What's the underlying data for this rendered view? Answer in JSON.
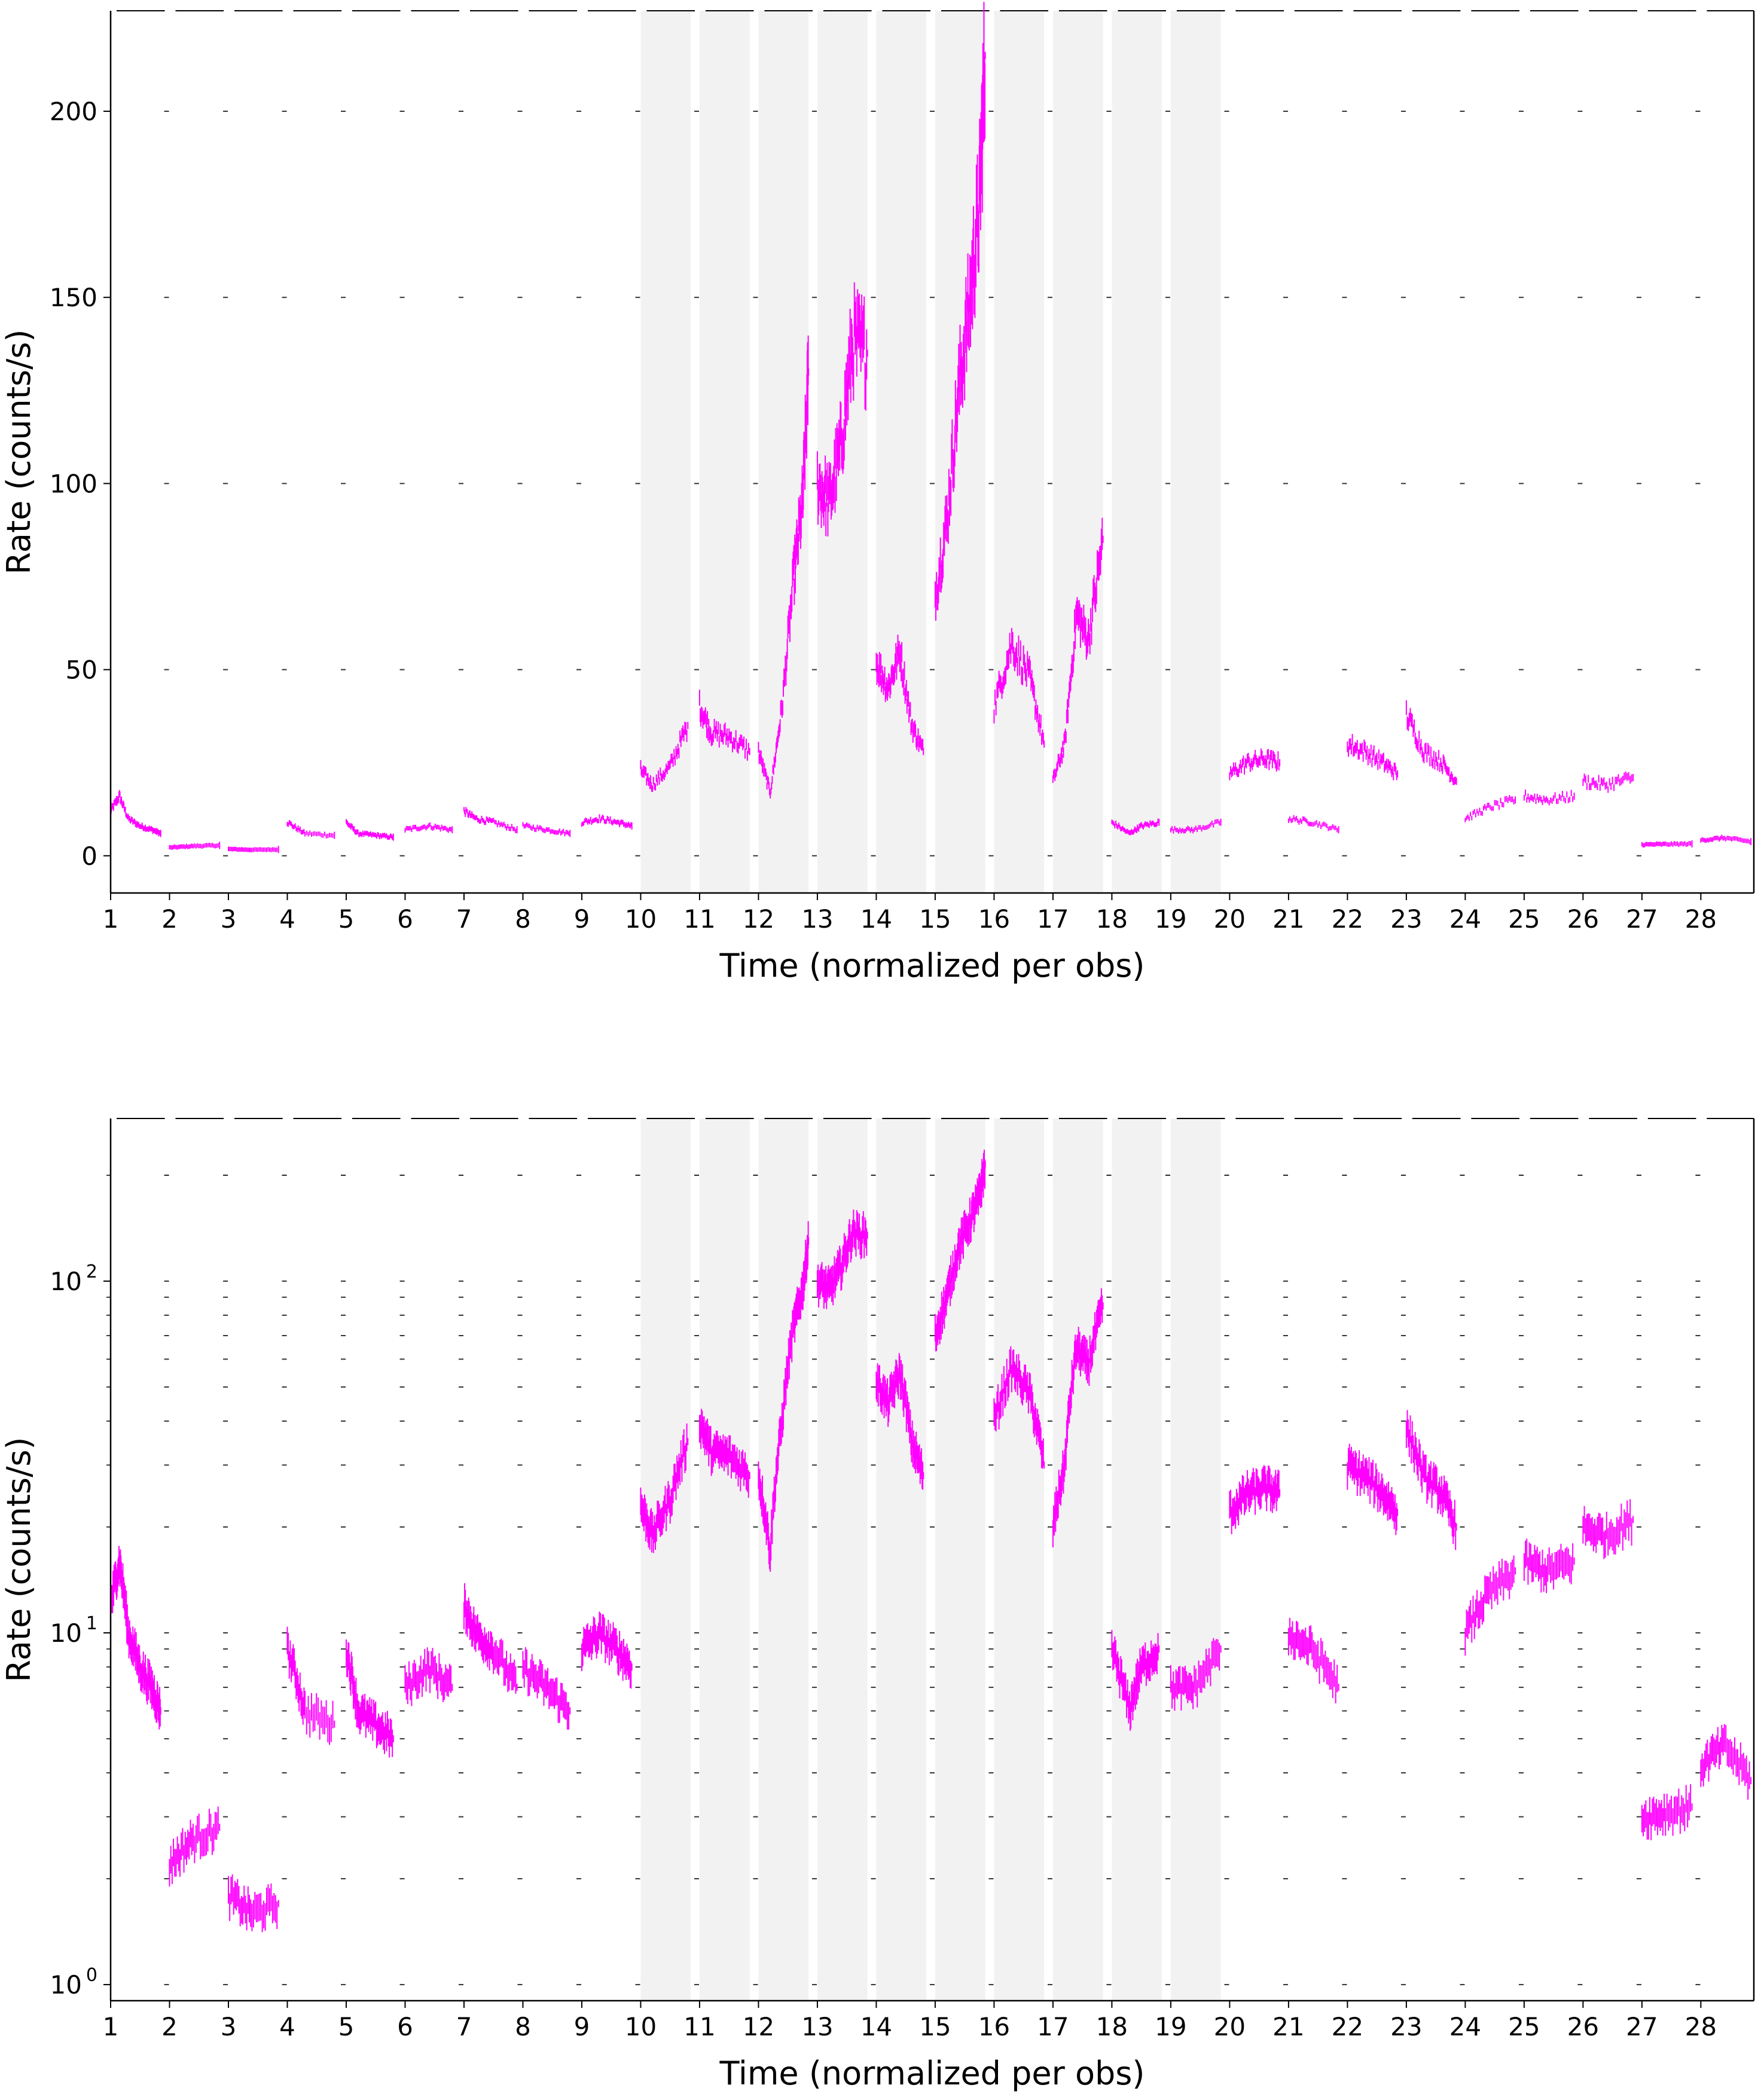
{
  "colors": {
    "series": "#ff00ff",
    "shade": "#f2f2f2",
    "grid": "#333333"
  },
  "chart_data": [
    {
      "type": "line",
      "scale": "linear",
      "xlabel": "Time (normalized per obs)",
      "ylabel": "Rate (counts/s)",
      "xlim": [
        1,
        28.9
      ],
      "ylim": [
        -10,
        227
      ],
      "xticks": [
        "1",
        "2",
        "3",
        "4",
        "5",
        "6",
        "7",
        "8",
        "9",
        "10",
        "11",
        "12",
        "13",
        "14",
        "15",
        "16",
        "17",
        "18",
        "19",
        "20",
        "21",
        "22",
        "23",
        "24",
        "25",
        "26",
        "27",
        "28"
      ],
      "yticks": [
        0,
        50,
        100,
        150,
        200
      ],
      "ytick_labels": [
        "0",
        "50",
        "100",
        "150",
        "200"
      ],
      "shaded_obs": [
        10,
        11,
        12,
        13,
        14,
        15,
        16,
        17,
        18,
        19
      ],
      "grid": "dashed, per observation",
      "series": [
        {
          "x": [
            1.0,
            1.15,
            1.3,
            1.5,
            1.7,
            1.85,
            2.0,
            2.4,
            2.85,
            3.0,
            3.4,
            3.85,
            4.0,
            4.3,
            4.8,
            5.0,
            5.2,
            5.5,
            5.8,
            6.0,
            6.4,
            6.8,
            7.0,
            7.2,
            7.5,
            7.9,
            8.0,
            8.4,
            8.8,
            9.0,
            9.3,
            9.6,
            9.85,
            10.0,
            10.2,
            10.5,
            10.8,
            11.0,
            11.2,
            11.5,
            11.85,
            12.0,
            12.2,
            12.4,
            12.6,
            12.75,
            12.85,
            13.0,
            13.2,
            13.4,
            13.6,
            13.85,
            14.0,
            14.2,
            14.4,
            14.6,
            14.8,
            15.0,
            15.2,
            15.4,
            15.6,
            15.75,
            15.85,
            16.0,
            16.3,
            16.6,
            16.85,
            17.0,
            17.2,
            17.4,
            17.6,
            17.85,
            18.0,
            18.3,
            18.5,
            18.8,
            19.0,
            19.4,
            19.85,
            20.0,
            20.3,
            20.6,
            20.85,
            21.0,
            21.4,
            21.85,
            22.0,
            22.3,
            22.6,
            22.85,
            23.0,
            23.3,
            23.6,
            23.85,
            24.0,
            24.4,
            24.85,
            25.0,
            25.4,
            25.85,
            26.0,
            26.4,
            26.85,
            27.0,
            27.4,
            27.85,
            28.0,
            28.4,
            28.85
          ],
          "y": [
            12,
            16,
            10,
            8,
            7,
            6,
            2.2,
            2.6,
            2.8,
            1.8,
            1.6,
            1.7,
            9,
            6,
            5.5,
            9,
            6,
            5.5,
            5,
            7,
            8,
            7,
            12,
            10,
            9,
            7,
            8,
            7,
            6,
            9,
            10,
            9,
            8,
            23,
            19,
            24,
            35,
            40,
            33,
            32,
            28,
            28,
            17,
            40,
            75,
            95,
            130,
            100,
            95,
            110,
            138,
            135,
            52,
            45,
            55,
            35,
            28,
            70,
            90,
            125,
            150,
            175,
            215,
            40,
            57,
            48,
            30,
            20,
            30,
            65,
            58,
            85,
            9,
            6,
            8,
            9,
            7,
            7,
            9,
            22,
            25,
            26,
            25,
            10,
            9,
            7,
            30,
            28,
            25,
            22,
            38,
            28,
            25,
            20,
            10,
            13,
            15,
            16,
            15,
            16,
            20,
            19,
            21,
            3,
            3.1,
            3.2,
            4.2,
            4.8,
            3.8
          ]
        }
      ]
    },
    {
      "type": "line",
      "scale": "log",
      "xlabel": "Time (normalized per obs)",
      "ylabel": "Rate (counts/s)",
      "xlim": [
        1,
        28.9
      ],
      "ylim": [
        0.9,
        290
      ],
      "xticks": [
        "1",
        "2",
        "3",
        "4",
        "5",
        "6",
        "7",
        "8",
        "9",
        "10",
        "11",
        "12",
        "13",
        "14",
        "15",
        "16",
        "17",
        "18",
        "19",
        "20",
        "21",
        "22",
        "23",
        "24",
        "25",
        "26",
        "27",
        "28"
      ],
      "yticks": [
        1,
        10,
        100
      ],
      "ytick_labels": [
        "10",
        "10",
        "10"
      ],
      "ytick_exponents": [
        "0",
        "1",
        "2"
      ],
      "shaded_obs": [
        10,
        11,
        12,
        13,
        14,
        15,
        16,
        17,
        18,
        19
      ],
      "grid": "dashed, per observation",
      "series": [
        {
          "x": [
            1.0,
            1.15,
            1.3,
            1.5,
            1.7,
            1.85,
            2.0,
            2.4,
            2.85,
            3.0,
            3.4,
            3.85,
            4.0,
            4.3,
            4.8,
            5.0,
            5.2,
            5.5,
            5.8,
            6.0,
            6.4,
            6.8,
            7.0,
            7.2,
            7.5,
            7.9,
            8.0,
            8.4,
            8.8,
            9.0,
            9.3,
            9.6,
            9.85,
            10.0,
            10.2,
            10.5,
            10.8,
            11.0,
            11.2,
            11.5,
            11.85,
            12.0,
            12.2,
            12.4,
            12.6,
            12.75,
            12.85,
            13.0,
            13.2,
            13.4,
            13.6,
            13.85,
            14.0,
            14.2,
            14.4,
            14.6,
            14.8,
            15.0,
            15.2,
            15.4,
            15.6,
            15.75,
            15.85,
            16.0,
            16.3,
            16.6,
            16.85,
            17.0,
            17.2,
            17.4,
            17.6,
            17.85,
            18.0,
            18.3,
            18.5,
            18.8,
            19.0,
            19.4,
            19.85,
            20.0,
            20.3,
            20.6,
            20.85,
            21.0,
            21.4,
            21.85,
            22.0,
            22.3,
            22.6,
            22.85,
            23.0,
            23.3,
            23.6,
            23.85,
            24.0,
            24.4,
            24.85,
            25.0,
            25.4,
            25.85,
            26.0,
            26.4,
            26.85,
            27.0,
            27.4,
            27.85,
            28.0,
            28.4,
            28.85
          ],
          "y": [
            12,
            16,
            10,
            8,
            7,
            6,
            2.2,
            2.6,
            2.8,
            1.8,
            1.6,
            1.7,
            9,
            6,
            5.5,
            9,
            6,
            5.5,
            5,
            7,
            8,
            7,
            12,
            10,
            9,
            7,
            8,
            7,
            6,
            9,
            10,
            9,
            8,
            23,
            19,
            24,
            35,
            40,
            33,
            32,
            28,
            28,
            17,
            40,
            75,
            95,
            130,
            100,
            95,
            110,
            138,
            135,
            52,
            45,
            55,
            35,
            28,
            70,
            90,
            125,
            150,
            175,
            215,
            40,
            57,
            48,
            30,
            20,
            30,
            65,
            58,
            85,
            9,
            6,
            8,
            9,
            7,
            7,
            9,
            22,
            25,
            26,
            25,
            10,
            9,
            7,
            30,
            28,
            25,
            22,
            38,
            28,
            25,
            20,
            10,
            13,
            15,
            16,
            15,
            16,
            20,
            19,
            21,
            3,
            3.1,
            3.2,
            4.2,
            4.8,
            3.8
          ]
        }
      ]
    }
  ]
}
